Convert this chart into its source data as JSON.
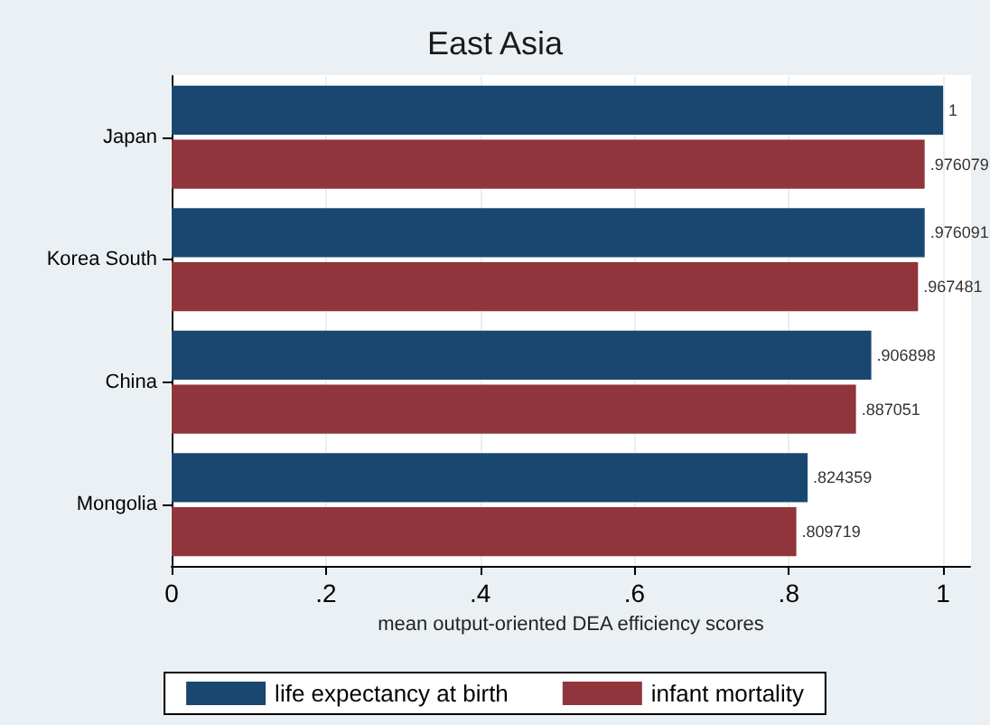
{
  "chart_data": {
    "type": "bar",
    "orientation": "horizontal",
    "title": "East Asia",
    "xlabel": "mean output-oriented DEA efficiency scores",
    "categories": [
      "Japan",
      "Korea South",
      "China",
      "Mongolia"
    ],
    "series": [
      {
        "name": "life expectancy at birth",
        "color": "#1a476f",
        "values": [
          1,
          0.976091,
          0.906898,
          0.824359
        ],
        "value_labels": [
          "1",
          ".976091",
          ".906898",
          ".824359"
        ]
      },
      {
        "name": "infant mortality",
        "color": "#90353b",
        "values": [
          0.976079,
          0.967481,
          0.887051,
          0.809719
        ],
        "value_labels": [
          ".976079",
          ".967481",
          ".887051",
          ".809719"
        ]
      }
    ],
    "xlim": [
      0,
      1.035
    ],
    "xticks": [
      0,
      {
        "value": 0.2,
        "label": ".2"
      },
      {
        "value": 0.4,
        "label": ".4"
      },
      {
        "value": 0.6,
        "label": ".6"
      },
      {
        "value": 0.8,
        "label": ".8"
      },
      1
    ],
    "grid": "x",
    "legend": "bottom"
  }
}
